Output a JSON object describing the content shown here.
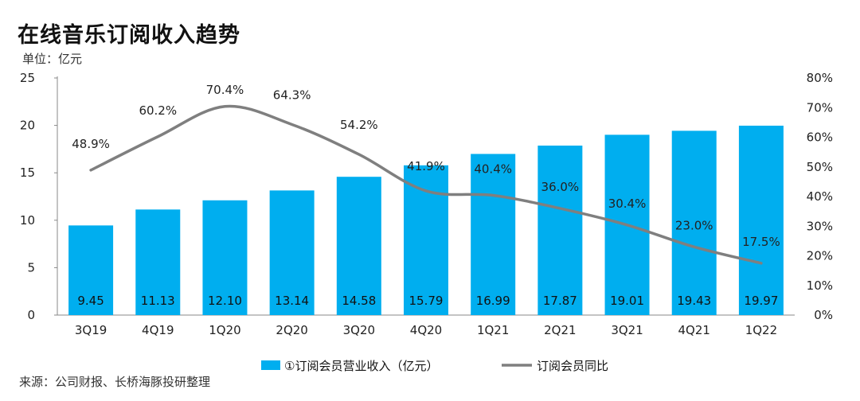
{
  "header": {
    "title": "在线音乐订阅收入趋势",
    "unit": "单位：亿元"
  },
  "footer": {
    "source": "来源：公司财报、长桥海豚投研整理"
  },
  "colors": {
    "bar": "#00aeef",
    "line": "#7f7f7f",
    "axis": "#888888"
  },
  "chart_data": {
    "type": "bar",
    "categories": [
      "3Q19",
      "4Q19",
      "1Q20",
      "2Q20",
      "3Q20",
      "4Q20",
      "1Q21",
      "2Q21",
      "3Q21",
      "4Q21",
      "1Q22"
    ],
    "series": [
      {
        "name": "①订阅会员营业收入（亿元）",
        "type": "bar",
        "axis": "left",
        "values": [
          9.45,
          11.13,
          12.1,
          13.14,
          14.58,
          15.79,
          16.99,
          17.87,
          19.01,
          19.43,
          19.97
        ],
        "labels": [
          "9.45",
          "11.13",
          "12.10",
          "13.14",
          "14.58",
          "15.79",
          "16.99",
          "17.87",
          "19.01",
          "19.43",
          "19.97"
        ]
      },
      {
        "name": "订阅会员同比",
        "type": "line",
        "axis": "right",
        "values": [
          48.9,
          60.2,
          70.4,
          64.3,
          54.2,
          41.9,
          40.4,
          36.0,
          30.4,
          23.0,
          17.5
        ],
        "labels": [
          "48.9%",
          "60.2%",
          "70.4%",
          "64.3%",
          "54.2%",
          "41.9%",
          "40.4%",
          "36.0%",
          "30.4%",
          "23.0%",
          "17.5%"
        ]
      }
    ],
    "y_left": {
      "ylim": [
        0,
        25
      ],
      "ticks": [
        "0",
        "5",
        "10",
        "15",
        "20",
        "25"
      ]
    },
    "y_right": {
      "ylim": [
        0,
        80
      ],
      "ticks": [
        "0%",
        "10%",
        "20%",
        "30%",
        "40%",
        "50%",
        "60%",
        "70%",
        "80%"
      ]
    },
    "legend_position": "bottom",
    "grid": false
  }
}
